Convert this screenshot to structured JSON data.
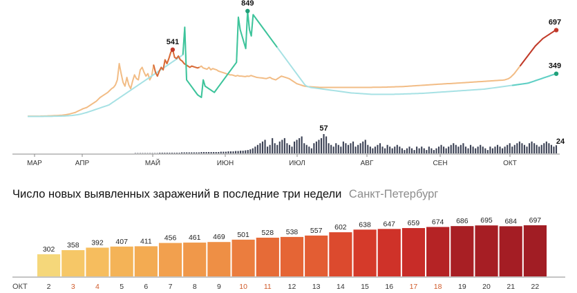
{
  "chart_data": [
    {
      "type": "line",
      "description_none": "",
      "x_ticks": [
        "МАР",
        "АПР",
        "МАЙ",
        "ИЮН",
        "ИЮЛ",
        "АВГ",
        "СЕН",
        "ОКТ"
      ],
      "series": [
        {
          "color": "#c0392b",
          "callouts": [
            "541",
            "697"
          ],
          "values": [
            10,
            10,
            10,
            10,
            10,
            10,
            10,
            11,
            11,
            12,
            12,
            13,
            13,
            14,
            15,
            15,
            16,
            17,
            18,
            20,
            22,
            25,
            28,
            32,
            36,
            40,
            48,
            55,
            62,
            70,
            75,
            80,
            90,
            100,
            110,
            120,
            130,
            145,
            160,
            170,
            180,
            190,
            200,
            215,
            230,
            240,
            260,
            300,
            430,
            350,
            280,
            250,
            320,
            260,
            230,
            290,
            340,
            310,
            300,
            380,
            400,
            360,
            330,
            350,
            300,
            330,
            420,
            360,
            330,
            370,
            400,
            380,
            460,
            430,
            470,
            520,
            541,
            480,
            470,
            490,
            460,
            450,
            430,
            420,
            410,
            400,
            410,
            405,
            400,
            395,
            400,
            410,
            395,
            390,
            385,
            400,
            380,
            390,
            385,
            380,
            370,
            365,
            360,
            355,
            350,
            345,
            340,
            340,
            335,
            330,
            335,
            330,
            330,
            328,
            326,
            330,
            328,
            335,
            330,
            325,
            320,
            318,
            316,
            315,
            312,
            310,
            315,
            320,
            310,
            305,
            300,
            310,
            320,
            330,
            325,
            320,
            315,
            310,
            300,
            290,
            280,
            270,
            265,
            260,
            255,
            250,
            248,
            246,
            245,
            244,
            243,
            242,
            241,
            240,
            240,
            240,
            240,
            240,
            240,
            240,
            240,
            240,
            240,
            240,
            240,
            240,
            240,
            240,
            240,
            240,
            240,
            240,
            240,
            240,
            240,
            240,
            240,
            240,
            240,
            240,
            240,
            241,
            241,
            241,
            241,
            241,
            242,
            242,
            242,
            243,
            243,
            244,
            244,
            245,
            245,
            246,
            246,
            247,
            248,
            249,
            250,
            251,
            252,
            253,
            254,
            255,
            256,
            257,
            258,
            259,
            260,
            261,
            262,
            263,
            264,
            265,
            266,
            267,
            268,
            269,
            270,
            270,
            271,
            272,
            273,
            274,
            275,
            276,
            277,
            278,
            279,
            280,
            281,
            282,
            283,
            284,
            285,
            286,
            287,
            288,
            289,
            290,
            291,
            292,
            293,
            294,
            295,
            296,
            297,
            298,
            300,
            305,
            310,
            320,
            335,
            350,
            370,
            390,
            410,
            430,
            450,
            470,
            490,
            510,
            530,
            550,
            570,
            585,
            600,
            615,
            630,
            640,
            650,
            660,
            670,
            680,
            690,
            697
          ]
        },
        {
          "color": "#20a07a",
          "callouts": [
            "849",
            "349"
          ],
          "values": [
            8,
            8,
            8,
            8,
            8,
            8,
            8,
            8,
            8,
            9,
            9,
            9,
            9,
            9,
            10,
            10,
            10,
            11,
            11,
            12,
            12,
            13,
            14,
            15,
            16,
            18,
            20,
            22,
            25,
            28,
            32,
            36,
            40,
            45,
            50,
            55,
            60,
            65,
            70,
            75,
            80,
            85,
            90,
            95,
            100,
            110,
            120,
            130,
            140,
            150,
            160,
            170,
            180,
            190,
            200,
            210,
            220,
            230,
            240,
            250,
            260,
            270,
            280,
            290,
            300,
            310,
            320,
            330,
            340,
            350,
            360,
            370,
            380,
            390,
            400,
            410,
            420,
            430,
            440,
            450,
            460,
            470,
            480,
            490,
            500,
            720,
            300,
            280,
            260,
            240,
            220,
            200,
            180,
            170,
            160,
            300,
            250,
            240,
            230,
            220,
            210,
            200,
            220,
            240,
            260,
            280,
            300,
            320,
            340,
            360,
            380,
            400,
            420,
            440,
            800,
            700,
            650,
            600,
            550,
            849,
            700,
            650,
            820,
            800,
            780,
            760,
            740,
            720,
            700,
            680,
            660,
            640,
            620,
            600,
            580,
            560,
            540,
            520,
            500,
            480,
            460,
            440,
            420,
            400,
            380,
            360,
            340,
            320,
            300,
            280,
            260,
            250,
            245,
            240,
            238,
            236,
            234,
            232,
            230,
            228,
            226,
            224,
            222,
            220,
            218,
            216,
            214,
            212,
            210,
            208,
            206,
            204,
            202,
            200,
            198,
            196,
            195,
            194,
            193,
            192,
            191,
            190,
            189,
            188,
            187,
            186,
            185,
            185,
            185,
            185,
            185,
            185,
            185,
            185,
            185,
            185,
            185,
            185,
            185,
            186,
            186,
            186,
            187,
            187,
            188,
            188,
            189,
            189,
            190,
            190,
            191,
            191,
            192,
            192,
            193,
            194,
            195,
            196,
            197,
            198,
            199,
            200,
            201,
            202,
            203,
            204,
            205,
            206,
            207,
            208,
            209,
            210,
            211,
            212,
            213,
            214,
            215,
            216,
            217,
            218,
            219,
            220,
            221,
            222,
            223,
            224,
            225,
            226,
            228,
            230,
            232,
            234,
            236,
            238,
            240,
            242,
            244,
            246,
            248,
            250,
            252,
            254,
            256,
            258,
            260,
            262,
            264,
            266,
            268,
            270,
            272,
            275,
            280,
            285,
            290,
            295,
            300,
            305,
            310,
            315,
            320,
            325,
            330,
            335,
            340,
            345,
            349
          ]
        }
      ],
      "bars_callouts": [
        "57",
        "24"
      ],
      "bars": [
        0,
        0,
        0,
        0,
        0,
        0,
        0,
        0,
        0,
        0,
        0,
        0,
        0,
        0,
        0,
        0,
        0,
        0,
        0,
        0,
        0,
        0,
        0,
        0,
        0,
        0,
        0,
        0,
        0,
        0,
        0,
        0,
        0,
        0,
        0,
        0,
        0,
        0,
        0,
        0,
        0,
        0,
        0,
        0,
        1,
        1,
        1,
        1,
        1,
        1,
        1,
        1,
        1,
        1,
        2,
        2,
        2,
        2,
        2,
        2,
        2,
        2,
        2,
        3,
        3,
        3,
        3,
        3,
        3,
        3,
        3,
        4,
        4,
        4,
        4,
        4,
        4,
        4,
        4,
        5,
        5,
        5,
        6,
        6,
        6,
        7,
        7,
        8,
        8,
        9,
        10,
        12,
        15,
        20,
        25,
        30,
        35,
        40,
        20,
        25,
        45,
        30,
        25,
        35,
        40,
        45,
        30,
        25,
        20,
        35,
        40,
        45,
        50,
        30,
        25,
        20,
        15,
        30,
        35,
        40,
        45,
        57,
        50,
        30,
        25,
        20,
        30,
        25,
        20,
        35,
        30,
        25,
        30,
        35,
        20,
        25,
        30,
        35,
        40,
        25,
        20,
        15,
        20,
        25,
        30,
        20,
        15,
        25,
        20,
        15,
        20,
        25,
        20,
        15,
        10,
        15,
        20,
        15,
        10,
        20,
        15,
        20,
        15,
        10,
        20,
        15,
        10,
        15,
        20,
        25,
        20,
        15,
        20,
        25,
        30,
        25,
        20,
        25,
        30,
        20,
        15,
        25,
        20,
        15,
        20,
        25,
        20,
        15,
        10,
        20,
        15,
        20,
        25,
        20,
        15,
        20,
        25,
        30,
        20,
        25,
        30,
        35,
        30,
        25,
        20,
        30,
        35,
        30,
        25,
        20,
        25,
        30,
        35,
        30,
        25,
        20,
        24
      ]
    },
    {
      "type": "bar",
      "title": "Число новых выявленных заражений в последние три недели",
      "subtitle": "Санкт-Петербург",
      "x_label": "ОКТ",
      "categories": [
        "2",
        "3",
        "4",
        "5",
        "6",
        "7",
        "8",
        "9",
        "10",
        "11",
        "12",
        "13",
        "14",
        "15",
        "16",
        "17",
        "18",
        "19",
        "20",
        "21",
        "22"
      ],
      "weekend_categories": [
        "3",
        "4",
        "10",
        "11",
        "17",
        "18"
      ],
      "values": [
        302,
        358,
        392,
        407,
        411,
        456,
        461,
        469,
        501,
        528,
        538,
        557,
        602,
        638,
        647,
        659,
        674,
        686,
        695,
        684,
        697
      ],
      "colors": [
        "#f5d77a",
        "#f6c767",
        "#f6bd5e",
        "#f4b357",
        "#f3ab52",
        "#f2a04e",
        "#f0984a",
        "#ee8f45",
        "#eb7d3e",
        "#e66b37",
        "#e56535",
        "#e35d33",
        "#dc4a2e",
        "#d53a2a",
        "#cf3229",
        "#c82c28",
        "#b52325",
        "#a81f24",
        "#a61e24",
        "#a41d24",
        "#a11d24"
      ],
      "weekend_color": "#d05a2a"
    }
  ]
}
